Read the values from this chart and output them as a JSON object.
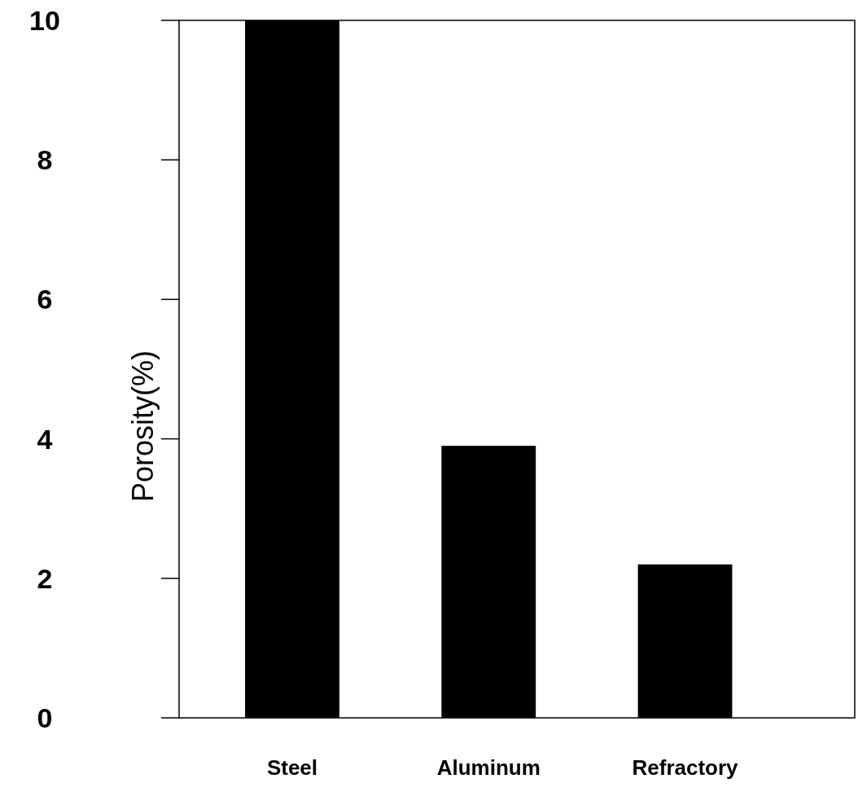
{
  "chart_data": {
    "type": "bar",
    "ylabel": "Porosity(%)",
    "categories": [
      "Steel",
      "Aluminum",
      "Refractory"
    ],
    "values": [
      10,
      3.9,
      2.2
    ],
    "color": "#000000",
    "ylim": [
      0,
      10
    ],
    "yticks": [
      0,
      2,
      4,
      6,
      8,
      10
    ],
    "grid": false
  }
}
